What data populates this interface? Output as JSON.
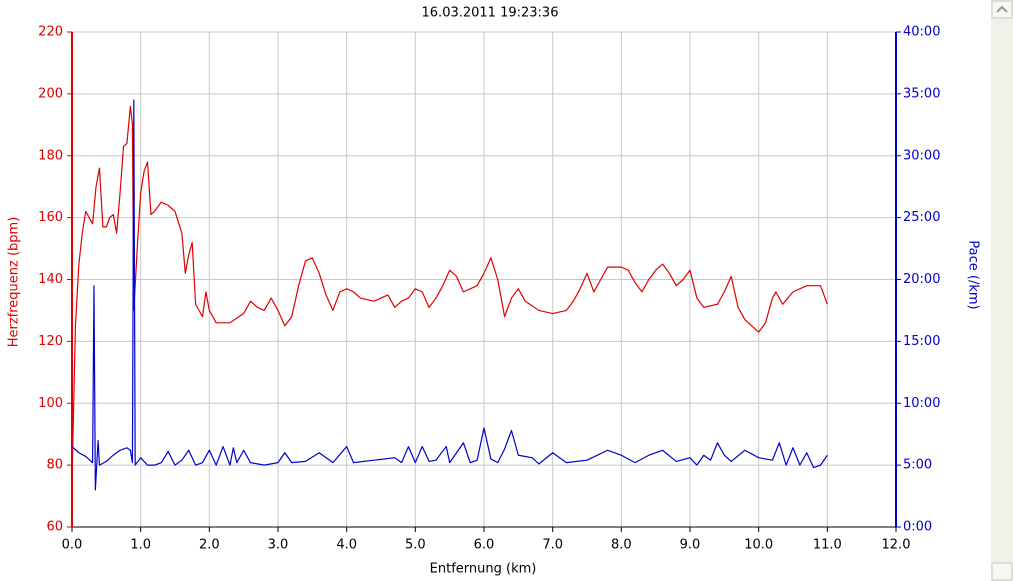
{
  "chart_data": {
    "type": "line",
    "title": "16.03.2011 19:23:36",
    "xlabel": "Entfernung (km)",
    "ylabel": "Herzfrequenz (bpm)",
    "y2label": "Pace (/km)",
    "xlim": [
      0,
      12
    ],
    "xticks": [
      {
        "value": 0,
        "label": "0.0"
      },
      {
        "value": 1,
        "label": "1.0"
      },
      {
        "value": 2,
        "label": "2.0"
      },
      {
        "value": 3,
        "label": "3.0"
      },
      {
        "value": 4,
        "label": "4.0"
      },
      {
        "value": 5,
        "label": "5.0"
      },
      {
        "value": 6,
        "label": "6.0"
      },
      {
        "value": 7,
        "label": "7.0"
      },
      {
        "value": 8,
        "label": "8.0"
      },
      {
        "value": 9,
        "label": "9.0"
      },
      {
        "value": 10,
        "label": "10.0"
      },
      {
        "value": 11,
        "label": "11.0"
      },
      {
        "value": 12,
        "label": "12.0"
      }
    ],
    "ylim": [
      60,
      220
    ],
    "yticks": [
      60,
      80,
      100,
      120,
      140,
      160,
      180,
      200,
      220
    ],
    "y2lim": [
      0,
      40
    ],
    "y2ticks": [
      {
        "value": 0,
        "label": "0:00"
      },
      {
        "value": 5,
        "label": "5:00"
      },
      {
        "value": 10,
        "label": "10:00"
      },
      {
        "value": 15,
        "label": "15:00"
      },
      {
        "value": 20,
        "label": "20:00"
      },
      {
        "value": 25,
        "label": "25:00"
      },
      {
        "value": 30,
        "label": "30:00"
      },
      {
        "value": 35,
        "label": "35:00"
      },
      {
        "value": 40,
        "label": "40:00"
      }
    ],
    "grid": true,
    "series": [
      {
        "color": "#e00000",
        "axis": "y",
        "x": [
          0,
          0.05,
          0.1,
          0.15,
          0.2,
          0.25,
          0.3,
          0.35,
          0.4,
          0.45,
          0.5,
          0.55,
          0.6,
          0.65,
          0.7,
          0.75,
          0.8,
          0.85,
          0.88,
          0.9,
          0.95,
          1.0,
          1.05,
          1.1,
          1.15,
          1.2,
          1.3,
          1.4,
          1.5,
          1.6,
          1.65,
          1.7,
          1.75,
          1.8,
          1.9,
          1.95,
          2.0,
          2.1,
          2.3,
          2.5,
          2.6,
          2.7,
          2.8,
          2.9,
          3.0,
          3.1,
          3.2,
          3.3,
          3.4,
          3.5,
          3.6,
          3.7,
          3.8,
          3.9,
          4.0,
          4.1,
          4.2,
          4.4,
          4.5,
          4.6,
          4.7,
          4.8,
          4.9,
          5.0,
          5.1,
          5.2,
          5.3,
          5.4,
          5.5,
          5.6,
          5.7,
          5.8,
          5.9,
          6.0,
          6.1,
          6.2,
          6.3,
          6.4,
          6.5,
          6.6,
          6.8,
          7.0,
          7.2,
          7.3,
          7.4,
          7.5,
          7.6,
          7.7,
          7.8,
          8.0,
          8.1,
          8.2,
          8.3,
          8.4,
          8.5,
          8.6,
          8.7,
          8.8,
          8.9,
          9.0,
          9.1,
          9.2,
          9.4,
          9.5,
          9.6,
          9.7,
          9.8,
          9.9,
          10.0,
          10.1,
          10.2,
          10.25,
          10.35,
          10.5,
          10.7,
          10.9,
          11.0
        ],
        "values": [
          75,
          125,
          145,
          155,
          162,
          160,
          158,
          170,
          176,
          157,
          157,
          160,
          161,
          155,
          168,
          183,
          184,
          196,
          190,
          130,
          150,
          168,
          175,
          178,
          161,
          162,
          165,
          164,
          162,
          155,
          142,
          148,
          152,
          132,
          128,
          136,
          130,
          126,
          126,
          129,
          133,
          131,
          130,
          134,
          130,
          125,
          128,
          138,
          146,
          147,
          142,
          135,
          130,
          136,
          137,
          136,
          134,
          133,
          134,
          135,
          131,
          133,
          134,
          137,
          136,
          131,
          134,
          138,
          143,
          141,
          136,
          137,
          138,
          142,
          147,
          140,
          128,
          134,
          137,
          133,
          130,
          129,
          130,
          133,
          137,
          142,
          136,
          140,
          144,
          144,
          143,
          139,
          136,
          140,
          143,
          145,
          142,
          138,
          140,
          143,
          134,
          131,
          132,
          136,
          141,
          131,
          127,
          125,
          123,
          126,
          134,
          136,
          132,
          136,
          138,
          138,
          132
        ]
      },
      {
        "color": "#0000cc",
        "axis": "y2",
        "x": [
          0,
          0.1,
          0.2,
          0.3,
          0.32,
          0.34,
          0.38,
          0.4,
          0.5,
          0.6,
          0.7,
          0.8,
          0.85,
          0.88,
          0.9,
          0.92,
          1.0,
          1.1,
          1.2,
          1.3,
          1.4,
          1.5,
          1.6,
          1.7,
          1.8,
          1.9,
          2.0,
          2.1,
          2.2,
          2.3,
          2.35,
          2.4,
          2.5,
          2.6,
          2.8,
          3.0,
          3.1,
          3.2,
          3.4,
          3.6,
          3.8,
          4.0,
          4.1,
          4.4,
          4.7,
          4.8,
          4.9,
          5.0,
          5.1,
          5.2,
          5.3,
          5.45,
          5.5,
          5.7,
          5.8,
          5.9,
          6.0,
          6.1,
          6.2,
          6.3,
          6.4,
          6.5,
          6.7,
          6.8,
          7.0,
          7.2,
          7.5,
          7.8,
          8.0,
          8.2,
          8.4,
          8.6,
          8.8,
          9.0,
          9.1,
          9.2,
          9.3,
          9.4,
          9.5,
          9.6,
          9.8,
          10.0,
          10.2,
          10.3,
          10.4,
          10.5,
          10.6,
          10.7,
          10.8,
          10.9,
          11.0
        ],
        "values": [
          6.5,
          6,
          5.7,
          5.2,
          19.5,
          3,
          7,
          5,
          5.3,
          5.8,
          6.2,
          6.4,
          6.2,
          5.2,
          34.5,
          5,
          5.6,
          5,
          5,
          5.2,
          6.1,
          5,
          5.4,
          6.2,
          5,
          5.2,
          6.2,
          5,
          6.5,
          5,
          6.4,
          5.2,
          6.2,
          5.2,
          5,
          5.2,
          6,
          5.2,
          5.3,
          6,
          5.2,
          6.5,
          5.2,
          5.4,
          5.6,
          5.2,
          6.5,
          5.2,
          6.5,
          5.3,
          5.4,
          6.5,
          5.2,
          6.8,
          5.2,
          5.4,
          8,
          5.5,
          5.2,
          6.3,
          7.8,
          5.8,
          5.6,
          5.1,
          6,
          5.2,
          5.4,
          6.2,
          5.8,
          5.2,
          5.8,
          6.2,
          5.3,
          5.6,
          5,
          5.8,
          5.4,
          6.8,
          5.8,
          5.3,
          6.2,
          5.6,
          5.4,
          6.8,
          5,
          6.4,
          5,
          6,
          4.8,
          5,
          5.8
        ]
      }
    ]
  }
}
